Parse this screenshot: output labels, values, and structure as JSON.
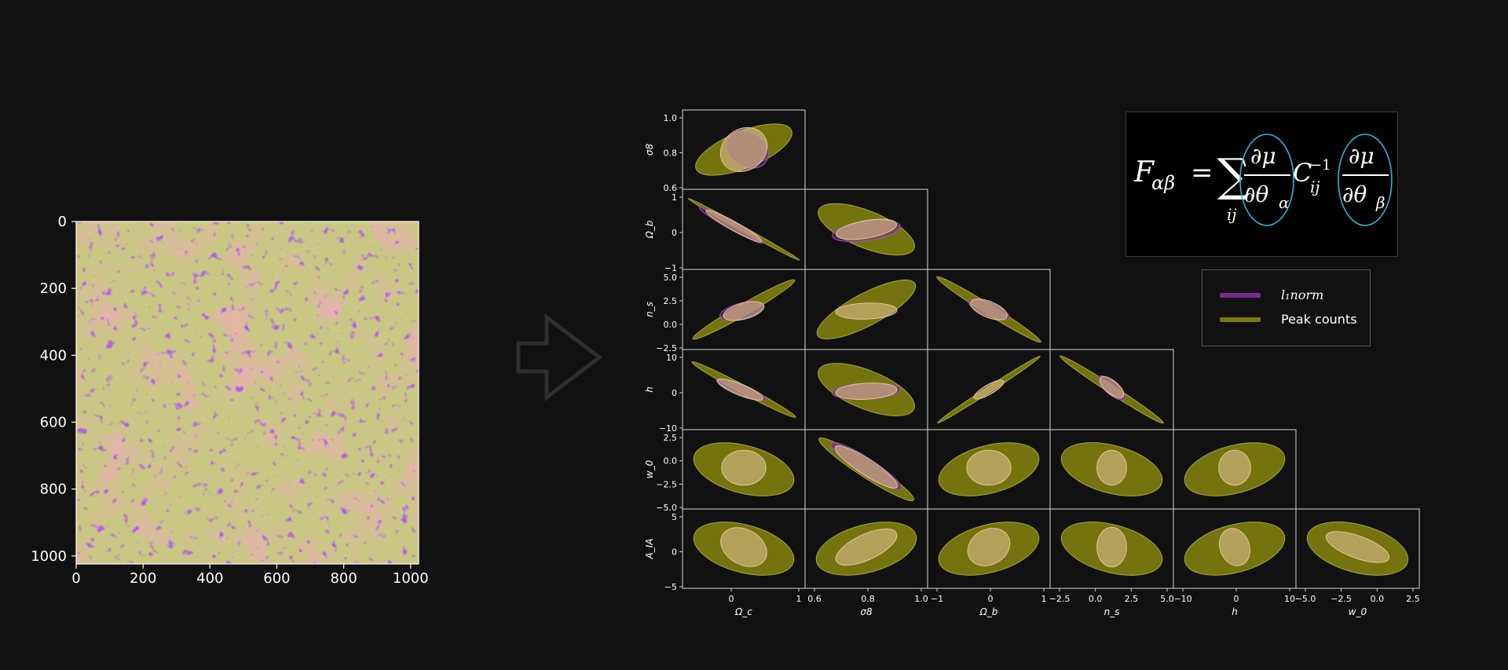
{
  "colors": {
    "background": "#111111",
    "l1norm": "#7a2a8a",
    "peak_counts": "#7a7a10",
    "formula_circle": "#29b6d6"
  },
  "map_panel": {
    "x_ticks": [
      "0",
      "200",
      "400",
      "600",
      "800",
      "1000"
    ],
    "y_ticks": [
      "0",
      "200",
      "400",
      "600",
      "800",
      "1000"
    ]
  },
  "arrow": {
    "icon": "right-arrow-outline-icon"
  },
  "corner_plot": {
    "row_labels": [
      "σ8",
      "Ω_b",
      "n_s",
      "h",
      "w_0",
      "A_IA"
    ],
    "col_labels": [
      "Ω_c",
      "σ8",
      "Ω_b",
      "n_s",
      "h",
      "w_0"
    ],
    "row_ticks": [
      [
        "1.0",
        "0.8",
        "0.6"
      ],
      [
        "1",
        "0",
        "−1"
      ],
      [
        "5.0",
        "2.5",
        "0.0",
        "−2.5"
      ],
      [
        "10",
        "0",
        "−10"
      ],
      [
        "2.5",
        "0.0",
        "−2.5",
        "−5.0"
      ],
      [
        "5",
        "0",
        "−5"
      ]
    ],
    "col_ticks": [
      [
        "0",
        "1"
      ],
      [
        "0.6",
        "0.8",
        "1.0"
      ],
      [
        "−1",
        "0",
        "1"
      ],
      [
        "−2.5",
        "0.0",
        "2.5",
        "5.0"
      ],
      [
        "−10",
        "0",
        "10"
      ],
      [
        "−5.0",
        "−2.5",
        "0.0",
        "2.5"
      ]
    ]
  },
  "legend": {
    "items": [
      {
        "label": "l₁norm",
        "color": "#7a2a8a"
      },
      {
        "label": "Peak counts",
        "color": "#7a7a10"
      }
    ]
  },
  "formula": {
    "F": "F",
    "F_sub": "αβ",
    "equals": "=",
    "sum": "∑",
    "sum_sub": "ij",
    "num": "∂μ",
    "den_a": "∂θ",
    "den_a_sub": "α",
    "C": "C",
    "C_sub": "ij",
    "C_sup": "−1",
    "den_b": "∂θ",
    "den_b_sub": "β"
  }
}
